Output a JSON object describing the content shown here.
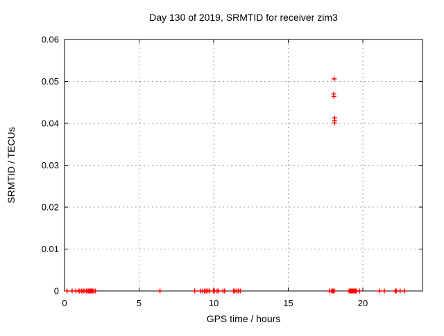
{
  "chart_data": {
    "type": "scatter",
    "title": "Day 130 of 2019, SRMTID for receiver zim3",
    "xlabel": "GPS time / hours",
    "ylabel": "SRMTID / TECUs",
    "xlim": [
      0,
      24
    ],
    "ylim": [
      0,
      0.06
    ],
    "xtick_values": [
      0,
      5,
      10,
      15,
      20
    ],
    "xtick_labels": [
      "0",
      "5",
      "10",
      "15",
      "20"
    ],
    "ytick_values": [
      0,
      0.01,
      0.02,
      0.03,
      0.04,
      0.05,
      0.06
    ],
    "ytick_labels": [
      "0",
      "0.01",
      "0.02",
      "0.03",
      "0.04",
      "0.05",
      "0.06"
    ],
    "grid": "dashed",
    "grid_color": "#a0a0a0",
    "legend": "none",
    "marker": "plus",
    "marker_color": "#ff0000",
    "border_color": "#000000",
    "series": [
      {
        "name": "srmtid",
        "points": [
          [
            0.17,
            0
          ],
          [
            0.51,
            0
          ],
          [
            0.76,
            0
          ],
          [
            0.92,
            0
          ],
          [
            1.02,
            0
          ],
          [
            1.15,
            0
          ],
          [
            1.26,
            0
          ],
          [
            1.36,
            0
          ],
          [
            1.46,
            0
          ],
          [
            1.56,
            0
          ],
          [
            1.62,
            0
          ],
          [
            1.68,
            0
          ],
          [
            1.74,
            0
          ],
          [
            1.8,
            0
          ],
          [
            1.86,
            0
          ],
          [
            1.92,
            0
          ],
          [
            2.06,
            0
          ],
          [
            6.4,
            0
          ],
          [
            8.73,
            0
          ],
          [
            9.12,
            0
          ],
          [
            9.27,
            0
          ],
          [
            9.38,
            0
          ],
          [
            9.49,
            0
          ],
          [
            9.61,
            0
          ],
          [
            9.72,
            0
          ],
          [
            9.98,
            0
          ],
          [
            10.05,
            0
          ],
          [
            10.23,
            0
          ],
          [
            10.34,
            0
          ],
          [
            10.62,
            0
          ],
          [
            10.73,
            0
          ],
          [
            11.33,
            0
          ],
          [
            11.42,
            0
          ],
          [
            11.55,
            0
          ],
          [
            11.65,
            0
          ],
          [
            11.78,
            0
          ],
          [
            17.77,
            0
          ],
          [
            17.92,
            0
          ],
          [
            17.97,
            0
          ],
          [
            18.03,
            0
          ],
          [
            18.08,
            0
          ],
          [
            19.08,
            0
          ],
          [
            19.14,
            0
          ],
          [
            19.2,
            0
          ],
          [
            19.26,
            0
          ],
          [
            19.32,
            0
          ],
          [
            19.38,
            0
          ],
          [
            19.44,
            0
          ],
          [
            19.5,
            0
          ],
          [
            19.57,
            0
          ],
          [
            19.78,
            0
          ],
          [
            21.13,
            0
          ],
          [
            21.44,
            0
          ],
          [
            22.17,
            0
          ],
          [
            22.24,
            0
          ],
          [
            22.5,
            0
          ],
          [
            22.78,
            0
          ],
          [
            18.05,
            0.047
          ],
          [
            18.06,
            0.0464
          ],
          [
            18.08,
            0.0506
          ],
          [
            18.11,
            0.0413
          ],
          [
            18.11,
            0.0407
          ],
          [
            18.11,
            0.0401
          ]
        ]
      }
    ]
  }
}
